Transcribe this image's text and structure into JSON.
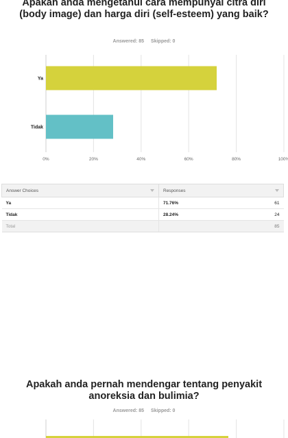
{
  "questions": [
    {
      "title": "Apakah anda mengetahui cara mempunyai citra diri (body image) dan harga diri (self-esteem) yang baik?",
      "answered_label": "Answered: 85",
      "skipped_label": "Skipped: 0"
    },
    {
      "title": "Apakah anda pernah mendengar tentang penyakit anoreksia dan bulimia?",
      "answered_label": "Answered: 85",
      "skipped_label": "Skipped: 0"
    }
  ],
  "chart_data": [
    {
      "type": "bar",
      "orientation": "horizontal",
      "categories": [
        "Ya",
        "Tidak"
      ],
      "values": [
        71.76,
        28.24
      ],
      "xlim": [
        0,
        100
      ],
      "xticks": [
        "0%",
        "20%",
        "40%",
        "60%",
        "80%",
        "100%"
      ],
      "grid": true,
      "colors": [
        "#d5d23c",
        "#63c0c6"
      ]
    },
    {
      "type": "bar",
      "orientation": "horizontal",
      "categories": [],
      "values": [],
      "xlim": [
        0,
        100
      ],
      "grid": true,
      "colors": [
        "#d5d23c"
      ]
    }
  ],
  "table": {
    "headers": [
      "Answer Choices",
      "Responses"
    ],
    "rows": [
      {
        "choice": "Ya",
        "percent": "71.76%",
        "count": "61"
      },
      {
        "choice": "Tidak",
        "percent": "28.24%",
        "count": "24"
      }
    ],
    "total": {
      "label": "Total",
      "count": "85"
    }
  }
}
